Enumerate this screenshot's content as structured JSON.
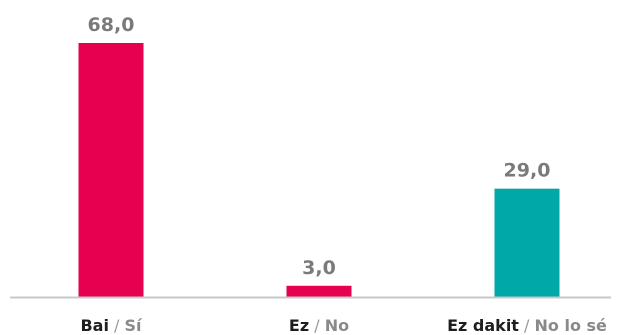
{
  "chart_data": {
    "type": "bar",
    "categories": [
      {
        "main": "Bai",
        "separator": " / ",
        "secondary": "Sí"
      },
      {
        "main": "Ez",
        "separator": " / ",
        "secondary": "No"
      },
      {
        "main": "Ez dakit",
        "separator": " / ",
        "secondary": "No lo sé"
      }
    ],
    "values": [
      68.0,
      3.0,
      29.0
    ],
    "value_labels": [
      "68,0",
      "3,0",
      "29,0"
    ],
    "colors": [
      "#e6004f",
      "#e6004f",
      "#00a8a8"
    ],
    "ylim": [
      0,
      68
    ],
    "grid": false,
    "axis_color": "#c8c8c8"
  }
}
